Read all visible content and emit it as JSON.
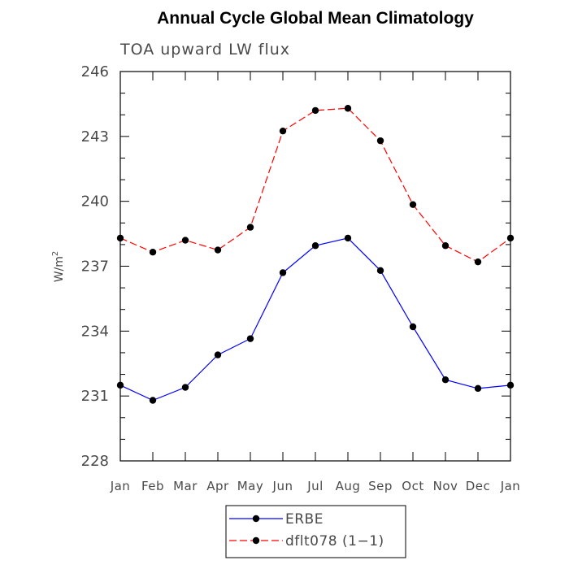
{
  "chart_data": {
    "type": "line",
    "title": "Annual Cycle Global Mean Climatology",
    "subtitle": "TOA upward LW flux",
    "ylabel": "W/m",
    "ylabel_superscript": "2",
    "xlabel": "",
    "categories": [
      "Jan",
      "Feb",
      "Mar",
      "Apr",
      "May",
      "Jun",
      "Jul",
      "Aug",
      "Sep",
      "Oct",
      "Nov",
      "Dec",
      "Jan"
    ],
    "ylim": [
      228,
      246
    ],
    "yticks": [
      228,
      231,
      234,
      237,
      240,
      243,
      246
    ],
    "ytick_labels": [
      "228",
      "231",
      "234",
      "237",
      "240",
      "243",
      "246"
    ],
    "grid": false,
    "legend_position": "bottom-center",
    "series": [
      {
        "name": "ERBE",
        "color": "#0000ff",
        "dashed": false,
        "marker_color": "#000000",
        "values": [
          231.5,
          230.8,
          231.4,
          232.9,
          233.65,
          236.7,
          237.95,
          238.3,
          236.8,
          234.2,
          231.75,
          231.35,
          231.5
        ]
      },
      {
        "name": "dflt078 (1−1)",
        "color": "#ff0000",
        "dashed": true,
        "marker_color": "#000000",
        "values": [
          238.3,
          237.65,
          238.2,
          237.75,
          238.8,
          243.25,
          244.2,
          244.3,
          242.8,
          239.85,
          237.95,
          237.2,
          238.3
        ]
      }
    ]
  }
}
